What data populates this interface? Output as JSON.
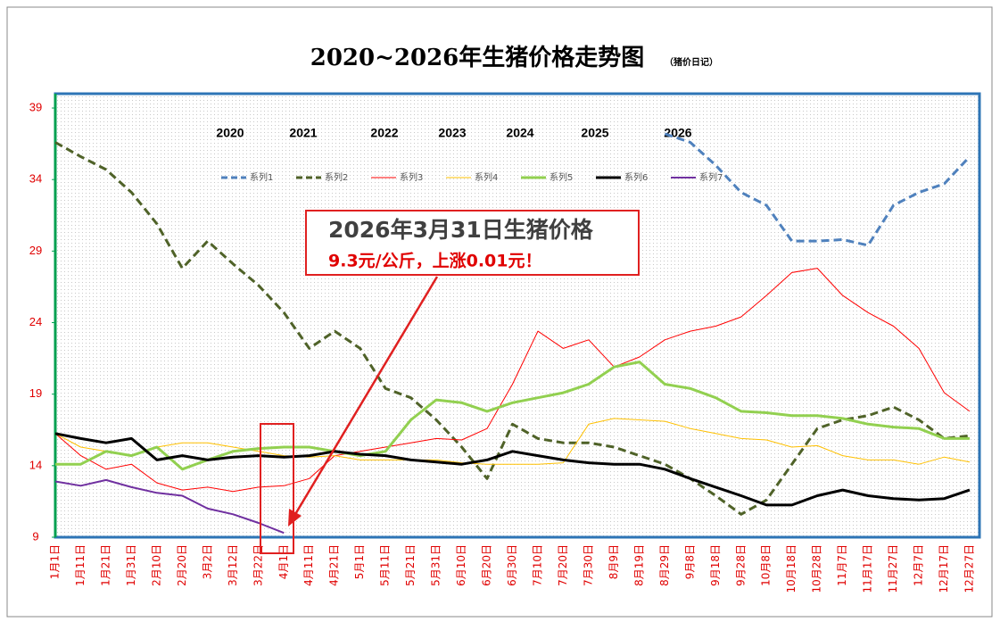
{
  "chart_data": {
    "type": "line",
    "title": "2020~2026年生猪价格走势图",
    "subtitle": "（猪价日记）",
    "year_labels": [
      "2020",
      "2021",
      "2022",
      "2023",
      "2024",
      "2025",
      "2026"
    ],
    "annotation": {
      "title": "2026年3月31日生猪价格",
      "text": "9.3元/公斤，上涨0.01元！"
    },
    "categories": [
      "1月1日",
      "1月11日",
      "1月21日",
      "1月31日",
      "2月10日",
      "2月20日",
      "3月2日",
      "3月12日",
      "3月22日",
      "4月1日",
      "4月11日",
      "4月21日",
      "5月1日",
      "5月11日",
      "5月21日",
      "5月31日",
      "6月10日",
      "6月20日",
      "6月30日",
      "7月10日",
      "7月20日",
      "7月30日",
      "8月9日",
      "8月19日",
      "8月29日",
      "9月8日",
      "9月18日",
      "9月28日",
      "10月8日",
      "10月18日",
      "10月28日",
      "11月7日",
      "11月17日",
      "11月27日",
      "12月7日",
      "12月17日",
      "12月27日"
    ],
    "ylim": [
      9,
      40
    ],
    "yticks": [
      9,
      14,
      19,
      24,
      29,
      34,
      39
    ],
    "grid": false,
    "series": [
      {
        "name": "系列1",
        "color": "#4f81bd",
        "line_style": "dashed",
        "weight": "thick",
        "values": [
          null,
          null,
          null,
          null,
          null,
          null,
          null,
          null,
          null,
          null,
          null,
          null,
          null,
          null,
          null,
          null,
          null,
          null,
          null,
          null,
          null,
          null,
          null,
          null,
          37.2,
          36.6,
          35,
          33.1,
          32.2,
          29.7,
          29.7,
          29.8,
          29.4,
          32.2,
          33.1,
          33.7,
          35.6
        ]
      },
      {
        "name": "系列2",
        "color": "#4f6228",
        "line_style": "dashed",
        "weight": "thick",
        "values": [
          36.6,
          35.6,
          34.7,
          33.1,
          30.9,
          27.8,
          29.7,
          28.1,
          26.6,
          24.7,
          22.2,
          23.4,
          22.2,
          19.4,
          18.75,
          17.2,
          15.3,
          13.1,
          16.9,
          15.9,
          15.6,
          15.6,
          15.3,
          14.7,
          14.1,
          13.1,
          11.9,
          10.6,
          11.6,
          14.1,
          16.6,
          17.2,
          17.5,
          18.1,
          17.2,
          15.9,
          16.1
        ]
      },
      {
        "name": "系列3",
        "color": "#ff0000",
        "line_style": "solid",
        "weight": "thin",
        "values": [
          16.25,
          14.7,
          13.75,
          14.1,
          12.8,
          12.3,
          12.5,
          12.2,
          12.5,
          12.6,
          13.1,
          14.7,
          15,
          15.3,
          15.6,
          15.9,
          15.8,
          16.6,
          19.7,
          23.4,
          22.2,
          22.8,
          20.9,
          21.6,
          22.8,
          23.4,
          23.75,
          24.4,
          25.9,
          27.5,
          27.8,
          25.9,
          24.7,
          23.75,
          22.2,
          19.1,
          17.8
        ]
      },
      {
        "name": "系列4",
        "color": "#ffc000",
        "line_style": "solid",
        "weight": "thin",
        "values": [
          16.25,
          15.3,
          15,
          14.7,
          15.3,
          15.6,
          15.6,
          15.3,
          15,
          14.7,
          14.6,
          14.7,
          14.4,
          14.4,
          14.4,
          14.4,
          14.2,
          14.1,
          14.1,
          14.1,
          14.2,
          16.9,
          17.3,
          17.2,
          17.1,
          16.6,
          16.25,
          15.9,
          15.8,
          15.3,
          15.4,
          14.7,
          14.4,
          14.4,
          14.1,
          14.6,
          14.25
        ]
      },
      {
        "name": "系列5",
        "color": "#92d050",
        "line_style": "solid",
        "weight": "thick",
        "values": [
          14.1,
          14.1,
          15,
          14.7,
          15.3,
          13.75,
          14.4,
          15,
          15.2,
          15.3,
          15.3,
          15,
          14.7,
          15,
          17.2,
          18.6,
          18.4,
          17.8,
          18.4,
          18.75,
          19.1,
          19.7,
          20.9,
          21.25,
          19.7,
          19.4,
          18.75,
          17.8,
          17.7,
          17.5,
          17.5,
          17.3,
          16.9,
          16.7,
          16.6,
          15.9,
          15.9
        ]
      },
      {
        "name": "系列6",
        "color": "#000000",
        "line_style": "solid",
        "weight": "thick",
        "values": [
          16.25,
          15.9,
          15.6,
          15.9,
          14.4,
          14.7,
          14.4,
          14.6,
          14.7,
          14.6,
          14.7,
          15,
          14.8,
          14.7,
          14.4,
          14.25,
          14.1,
          14.4,
          15,
          14.7,
          14.4,
          14.2,
          14.1,
          14.1,
          13.75,
          13.1,
          12.5,
          11.9,
          11.25,
          11.25,
          11.9,
          12.3,
          11.9,
          11.7,
          11.6,
          11.7,
          12.3
        ]
      },
      {
        "name": "系列7",
        "color": "#7030a0",
        "line_style": "solid",
        "weight": "medium",
        "values": [
          12.9,
          12.6,
          13,
          12.5,
          12.1,
          11.9,
          11,
          10.6,
          10,
          9.3,
          null,
          null,
          null,
          null,
          null,
          null,
          null,
          null,
          null,
          null,
          null,
          null,
          null,
          null,
          null,
          null,
          null,
          null,
          null,
          null,
          null,
          null,
          null,
          null,
          null,
          null,
          null
        ]
      }
    ]
  }
}
